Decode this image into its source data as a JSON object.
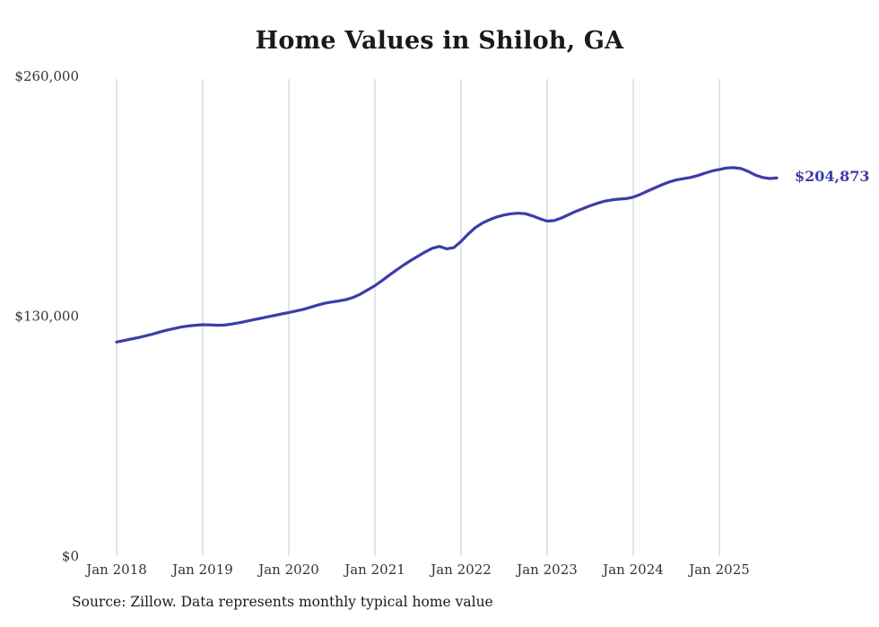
{
  "chart": {
    "title": "Home Values in Shiloh, GA",
    "end_label": "$204,873",
    "source_note": "Source: Zillow. Data represents monthly typical home value",
    "line_color": "#3c3ca8",
    "gridline_color": "#c9c9c9",
    "label_color": "#333333"
  },
  "chart_data": {
    "type": "line",
    "title": "Home Values in Shiloh, GA",
    "xlabel": "",
    "ylabel": "",
    "ylim": [
      0,
      260000
    ],
    "grid": "vertical-only",
    "legend": "none",
    "x_start": "Jan 2018",
    "x_end": "Sep 2025",
    "x_interval": "monthly",
    "x_tick_labels": [
      "Jan 2018",
      "Jan 2019",
      "Jan 2020",
      "Jan 2021",
      "Jan 2022",
      "Jan 2023",
      "Jan 2024",
      "Jan 2025"
    ],
    "y_ticks": [
      {
        "value": 0,
        "label": "$0"
      },
      {
        "value": 130000,
        "label": "$130,000"
      },
      {
        "value": 260000,
        "label": "$260,000"
      }
    ],
    "annotations": [
      "$204,873"
    ],
    "series": [
      {
        "name": "Monthly typical home value",
        "values": [
          116000,
          116800,
          117600,
          118400,
          119300,
          120300,
          121400,
          122400,
          123300,
          124100,
          124700,
          125100,
          125400,
          125300,
          125100,
          125200,
          125700,
          126400,
          127200,
          128000,
          128800,
          129600,
          130400,
          131200,
          132000,
          132800,
          133700,
          134800,
          136000,
          137000,
          137700,
          138300,
          139000,
          140200,
          142000,
          144300,
          146500,
          149300,
          152200,
          155000,
          157700,
          160200,
          162500,
          164800,
          166800,
          167800,
          166500,
          167200,
          170500,
          174500,
          178000,
          180500,
          182300,
          183800,
          184800,
          185500,
          185800,
          185500,
          184300,
          182800,
          181500,
          181800,
          183200,
          185000,
          186800,
          188300,
          189800,
          191200,
          192300,
          193000,
          193400,
          193700,
          194500,
          196000,
          197800,
          199500,
          201200,
          202700,
          203800,
          204500,
          205200,
          206200,
          207500,
          208700,
          209500,
          210300,
          210500,
          210000,
          208500,
          206500,
          205200,
          204600,
          204873
        ]
      }
    ]
  }
}
